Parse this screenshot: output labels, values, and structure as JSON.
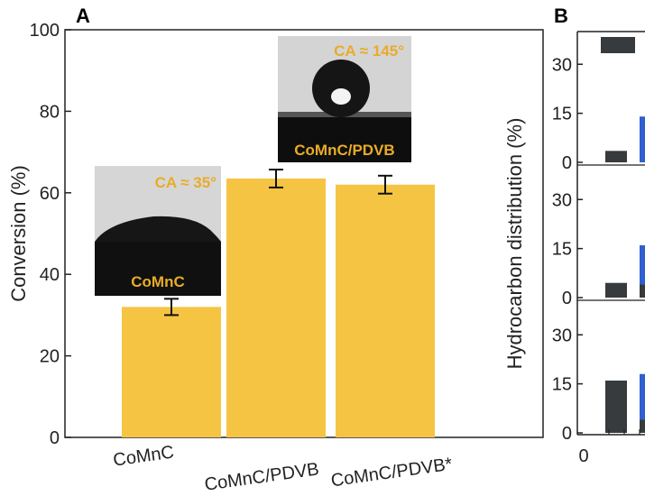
{
  "colors": {
    "bar": "#f5c443",
    "inset_label": "#e8ac28",
    "dark_bar": "#383b3e",
    "blue_bar": "#2f5fd0",
    "axis": "#222222"
  },
  "chart_data": [
    {
      "panel": "A",
      "type": "bar",
      "ylabel": "Conversion (%)",
      "ylim": [
        0,
        100
      ],
      "yticks": [
        0,
        20,
        40,
        60,
        80,
        100
      ],
      "categories": [
        "CoMnC",
        "CoMnC/PDVB",
        "CoMnC/PDVB*"
      ],
      "values": [
        32,
        63.5,
        62
      ],
      "errors": [
        2,
        2.2,
        2.2
      ],
      "insets": [
        {
          "category": "CoMnC",
          "angle_label": "CA ≈ 35°",
          "sample_label": "CoMnC"
        },
        {
          "category": "CoMnC/PDVB",
          "angle_label": "CA ≈ 145°",
          "sample_label": "CoMnC/PDVB"
        }
      ]
    },
    {
      "panel": "B",
      "type": "bar",
      "ylabel": "Hydrocarbon distribution (%)",
      "subplot_yticks": [
        0,
        15,
        30
      ],
      "xtick": "0",
      "subplots": [
        {
          "dark": 3.5,
          "blue": 14
        },
        {
          "dark": 4.5,
          "blue": 16,
          "blue_base": 4
        },
        {
          "dark": 16,
          "blue": 18,
          "blue_base": 4
        }
      ]
    }
  ]
}
